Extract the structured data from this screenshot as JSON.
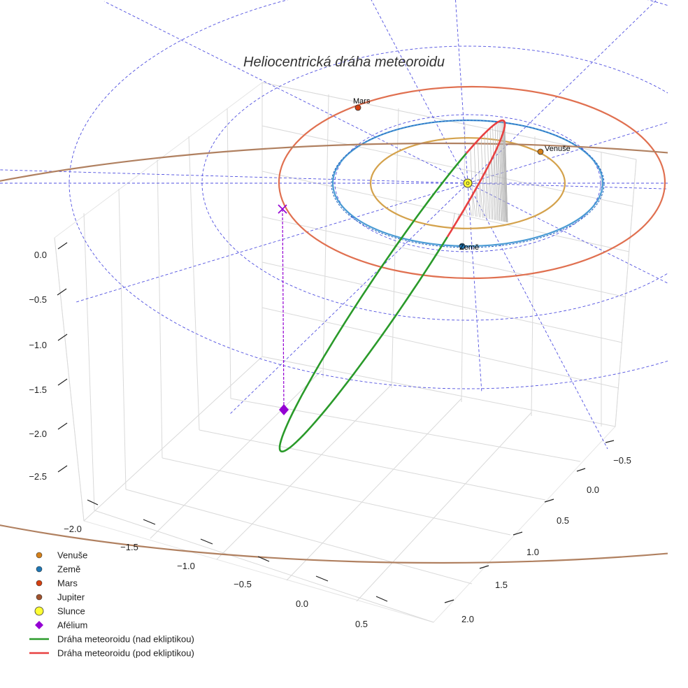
{
  "chart_data": {
    "type": "line3d",
    "title": "Heliocentrická dráha meteoroidu",
    "z_ticks": [
      "0.0",
      "−0.5",
      "−1.0",
      "−1.5",
      "−2.0",
      "−2.5"
    ],
    "x_ticks": [
      "−2.0",
      "−1.5",
      "−1.0",
      "−0.5",
      "0.0",
      "0.5"
    ],
    "y_ticks": [
      "−0.5",
      "0.0",
      "0.5",
      "1.0",
      "1.5",
      "2.0"
    ],
    "zlim": [
      -2.75,
      0.25
    ],
    "xlim": [
      -2.2,
      0.8
    ],
    "ylim": [
      -0.7,
      2.3
    ],
    "ecliptic_grid_radii_au": [
      1,
      2,
      3
    ],
    "orbits": [
      {
        "name": "Venuše",
        "radius_au": 0.72,
        "color": "#d4a24c"
      },
      {
        "name": "Země",
        "radius_au": 1.0,
        "color": "#4a9bd4"
      },
      {
        "name": "Mars",
        "radius_au": 1.52,
        "color": "#e07050"
      },
      {
        "name": "Jupiter",
        "radius_au": 5.2,
        "color": "#b08060"
      }
    ],
    "planets": [
      {
        "name": "Venuše",
        "label": "Venuše",
        "color": "#d4801a"
      },
      {
        "name": "Země",
        "label": "Země",
        "color": "#1f77b4"
      },
      {
        "name": "Mars",
        "label": "Mars",
        "color": "#d44010"
      }
    ],
    "sun": {
      "name": "Slunce",
      "color": "#ffff33"
    },
    "aphelion": {
      "name": "Afélium",
      "color": "#9400d3",
      "z_au": -2.0
    },
    "meteoroid": {
      "above_ecliptic": {
        "name": "Dráha meteoroidu (nad ekliptikou)",
        "color": "#2a9a2a"
      },
      "below_ecliptic": {
        "name": "Dráha meteoroidu (pod ekliptikou)",
        "color": "#e84040"
      }
    },
    "legend": [
      {
        "label": "Venuše",
        "marker": "circle",
        "color": "#d4801a"
      },
      {
        "label": "Země",
        "marker": "circle",
        "color": "#1f77b4"
      },
      {
        "label": "Mars",
        "marker": "circle",
        "color": "#d44010"
      },
      {
        "label": "Jupiter",
        "marker": "circle",
        "color": "#a0522d"
      },
      {
        "label": "Slunce",
        "marker": "big-circle",
        "color": "#ffff33"
      },
      {
        "label": "Afélium",
        "marker": "diamond",
        "color": "#9400d3"
      },
      {
        "label": "Dráha meteoroidu (nad ekliptikou)",
        "marker": "line",
        "color": "#2a9a2a"
      },
      {
        "label": "Dráha meteoroidu (pod ekliptikou)",
        "marker": "line",
        "color": "#e84040"
      }
    ]
  }
}
